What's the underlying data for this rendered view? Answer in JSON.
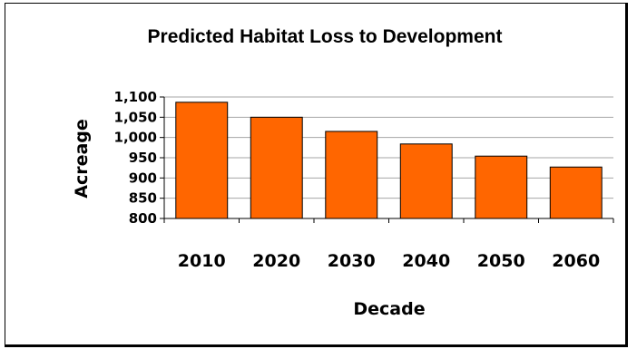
{
  "chart_data": {
    "type": "bar",
    "title": "Predicted Habitat Loss to Development",
    "xlabel": "Decade",
    "ylabel": "Acreage",
    "categories": [
      "2010",
      "2020",
      "2030",
      "2040",
      "2050",
      "2060"
    ],
    "values": [
      1087,
      1050,
      1015,
      984,
      954,
      927
    ],
    "ylim": [
      800,
      1100
    ],
    "yticks": [
      800,
      850,
      900,
      950,
      1000,
      1050,
      1100
    ],
    "ytick_labels": [
      "800",
      "850",
      "900",
      "950",
      "1,000",
      "1,050",
      "1,100"
    ],
    "bar_color": "#ff6600",
    "grid": true,
    "legend": "none"
  }
}
